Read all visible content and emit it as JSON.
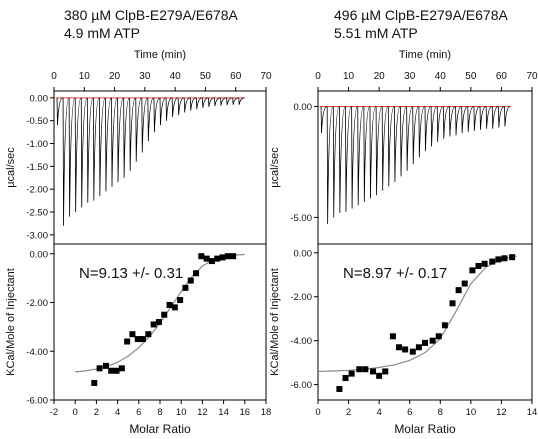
{
  "panels": [
    {
      "title_line1": "380 µM ClpB-E279A/E678A",
      "title_line2": "4.9 mM ATP",
      "annotation": "N=9.13 +/- 0.31"
    },
    {
      "title_line1": "496 µM ClpB-E279A/E678A",
      "title_line2": "5.51 mM ATP",
      "annotation": "N=8.97 +/- 0.17"
    }
  ],
  "colors": {
    "trace": "#000000",
    "baseline": "#e8453c",
    "fit": "#8a8a8a",
    "points": "#000000"
  },
  "chart_data": [
    {
      "type": "line",
      "panel": "left-top",
      "xlabel": "Time (min)",
      "ylabel": "µcal/sec",
      "xlim": [
        0,
        70
      ],
      "ylim": [
        -3.2,
        0.15
      ],
      "xticks": [
        0,
        10,
        20,
        30,
        40,
        50,
        60,
        70
      ],
      "yticks": [
        0.0,
        -0.5,
        -1.0,
        -1.5,
        -2.0,
        -2.5,
        -3.0
      ],
      "ytick_labels": [
        "0.00",
        "-0.50",
        "-1.00",
        "-1.50",
        "-2.00",
        "-2.50",
        "-3.00"
      ],
      "baseline": 0.0,
      "injection_times": [
        1,
        3,
        5,
        7,
        9,
        11,
        13,
        15,
        17,
        19,
        21,
        23,
        25,
        27,
        29,
        31,
        33,
        35,
        37,
        39,
        41,
        43,
        45,
        47,
        49,
        51,
        53,
        55,
        57,
        59,
        61
      ],
      "peak_values": [
        -0.6,
        -2.8,
        -2.6,
        -2.5,
        -2.4,
        -2.3,
        -2.25,
        -2.15,
        -2.05,
        -1.95,
        -1.85,
        -1.75,
        -1.6,
        -1.4,
        -1.2,
        -0.95,
        -0.75,
        -0.6,
        -0.5,
        -0.42,
        -0.38,
        -0.32,
        -0.28,
        -0.25,
        -0.22,
        -0.2,
        -0.18,
        -0.17,
        -0.16,
        -0.15,
        -0.15
      ]
    },
    {
      "type": "scatter",
      "panel": "left-bottom",
      "xlabel": "Molar Ratio",
      "ylabel": "KCal/Mole of Injectant",
      "xlim": [
        -2,
        18
      ],
      "ylim": [
        -6.0,
        0.4
      ],
      "xticks": [
        -2,
        0,
        2,
        4,
        6,
        8,
        10,
        12,
        14,
        16,
        18
      ],
      "yticks": [
        0.0,
        -2.0,
        -4.0,
        -6.0
      ],
      "ytick_labels": [
        "0.00",
        "-2.00",
        "-4.00",
        "-6.00"
      ],
      "points": {
        "x": [
          1.8,
          2.3,
          2.9,
          3.4,
          3.9,
          4.4,
          4.9,
          5.4,
          5.9,
          6.4,
          6.9,
          7.4,
          7.9,
          8.4,
          8.9,
          9.4,
          9.9,
          10.4,
          10.9,
          11.4,
          11.9,
          12.4,
          12.9,
          13.4,
          13.9,
          14.4,
          14.9
        ],
        "y": [
          -5.3,
          -4.7,
          -4.6,
          -4.8,
          -4.8,
          -4.7,
          -3.6,
          -3.3,
          -3.5,
          -3.5,
          -3.3,
          -2.9,
          -2.8,
          -2.5,
          -2.1,
          -2.2,
          -1.9,
          -1.4,
          -1.1,
          -0.8,
          -0.1,
          -0.2,
          -0.3,
          -0.2,
          -0.15,
          -0.1,
          -0.1
        ]
      },
      "fit": {
        "x": [
          0,
          1,
          2,
          3,
          4,
          5,
          6,
          7,
          8,
          9,
          10,
          11,
          12,
          13,
          14,
          15,
          16
        ],
        "y": [
          -4.85,
          -4.8,
          -4.73,
          -4.62,
          -4.45,
          -4.2,
          -3.85,
          -3.4,
          -2.85,
          -2.2,
          -1.55,
          -0.95,
          -0.5,
          -0.25,
          -0.12,
          -0.06,
          -0.03
        ]
      }
    },
    {
      "type": "line",
      "panel": "right-top",
      "xlabel": "Time (min)",
      "ylabel": "µcal/sec",
      "xlim": [
        0,
        70
      ],
      "ylim": [
        -6.2,
        0.7
      ],
      "xticks": [
        0,
        10,
        20,
        30,
        40,
        50,
        60,
        70
      ],
      "yticks": [
        0.0,
        -5.0
      ],
      "ytick_labels": [
        "0.00",
        "-5.00"
      ],
      "baseline": 0.0,
      "injection_times": [
        1,
        3,
        5,
        7,
        9,
        11,
        13,
        15,
        17,
        19,
        21,
        23,
        25,
        27,
        29,
        31,
        33,
        35,
        37,
        39,
        41,
        43,
        45,
        47,
        49,
        51,
        53,
        55,
        57,
        59,
        61
      ],
      "peak_values": [
        -1.2,
        -5.3,
        -5.0,
        -4.8,
        -4.75,
        -4.6,
        -4.45,
        -4.3,
        -4.15,
        -4.0,
        -3.8,
        -3.6,
        -3.4,
        -3.15,
        -2.9,
        -2.6,
        -2.3,
        -2.0,
        -1.8,
        -1.6,
        -1.45,
        -1.35,
        -1.3,
        -1.2,
        -1.15,
        -1.1,
        -1.05,
        -1.0,
        -1.0,
        -0.95,
        -0.9
      ]
    },
    {
      "type": "scatter",
      "panel": "right-bottom",
      "xlabel": "Molar Ratio",
      "ylabel": "KCal/Mole of Injectant",
      "xlim": [
        0,
        14
      ],
      "ylim": [
        -6.7,
        0.4
      ],
      "xticks": [
        0,
        2,
        4,
        6,
        8,
        10,
        12,
        14
      ],
      "yticks": [
        0.0,
        -2.0,
        -4.0,
        -6.0
      ],
      "ytick_labels": [
        "0.00",
        "-2.00",
        "-4.00",
        "-6.00"
      ],
      "points": {
        "x": [
          1.4,
          1.8,
          2.2,
          2.7,
          3.1,
          3.6,
          4.0,
          4.4,
          4.9,
          5.3,
          5.7,
          6.2,
          6.6,
          7.0,
          7.5,
          7.9,
          8.3,
          8.8,
          9.2,
          9.6,
          10.1,
          10.5,
          10.9,
          11.4,
          11.8,
          12.2,
          12.7
        ],
        "y": [
          -6.2,
          -5.7,
          -5.5,
          -5.3,
          -5.3,
          -5.4,
          -5.6,
          -5.4,
          -3.8,
          -4.3,
          -4.4,
          -4.5,
          -4.3,
          -4.1,
          -4.0,
          -3.8,
          -3.3,
          -2.3,
          -1.7,
          -1.4,
          -0.8,
          -0.6,
          -0.5,
          -0.4,
          -0.3,
          -0.25,
          -0.2
        ]
      },
      "fit": {
        "x": [
          0,
          1,
          2,
          3,
          4,
          5,
          6,
          7,
          8,
          9,
          10,
          11,
          12,
          13
        ],
        "y": [
          -5.4,
          -5.38,
          -5.35,
          -5.3,
          -5.22,
          -5.1,
          -4.9,
          -4.55,
          -3.9,
          -2.7,
          -1.4,
          -0.65,
          -0.3,
          -0.15
        ]
      }
    }
  ]
}
